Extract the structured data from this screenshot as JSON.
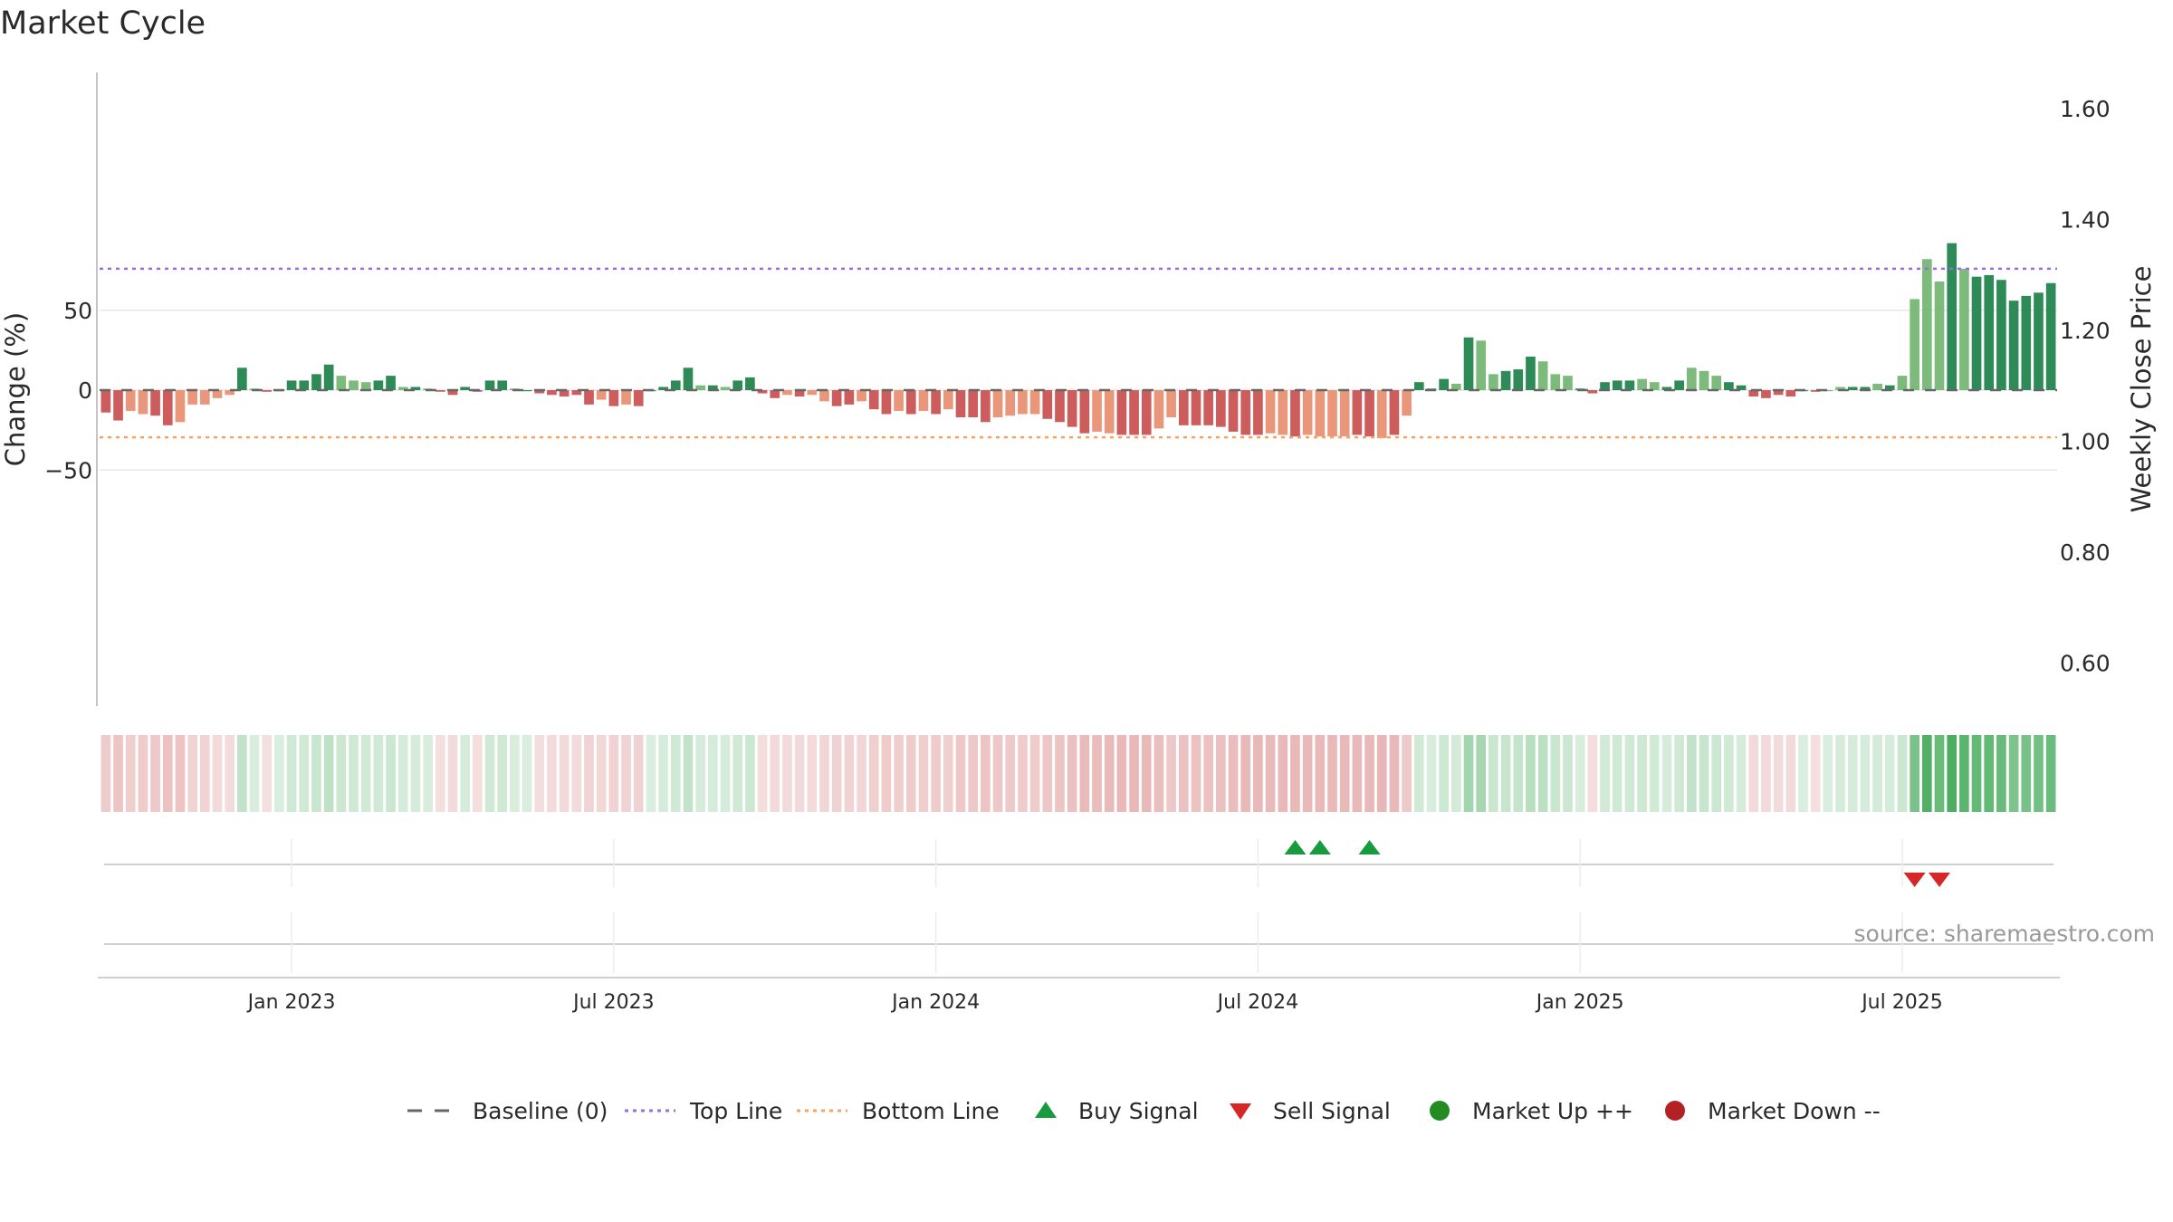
{
  "title": "Market Cycle",
  "source_text": "source: sharemaestro.com",
  "colors": {
    "dark_green": "#2e8b57",
    "light_green": "#7dbb7d",
    "dark_red": "#cd5c5c",
    "light_red": "#e9967a",
    "top_line": "#9370db",
    "bottom_line": "#f4a460",
    "buy": "#1a9a3e",
    "sell": "#d62728",
    "market_up": "#228b22",
    "market_down": "#b22222",
    "baseline": "#666666"
  },
  "legend": [
    {
      "label": "Baseline (0)",
      "symbol": "dash",
      "color": "#666666"
    },
    {
      "label": "Top Line",
      "symbol": "dot-purple",
      "color": "#9370db"
    },
    {
      "label": "Bottom Line",
      "symbol": "dot-orange",
      "color": "#f4a460"
    },
    {
      "label": "Buy Signal",
      "symbol": "triangle-up",
      "color": "#1a9a3e"
    },
    {
      "label": "Sell Signal",
      "symbol": "triangle-down",
      "color": "#d62728"
    },
    {
      "label": "Market Up ++",
      "symbol": "circle",
      "color": "#228b22"
    },
    {
      "label": "Market Down --",
      "symbol": "circle",
      "color": "#b22222"
    }
  ],
  "chart_data": {
    "type": "bar",
    "title": "Market Cycle",
    "ylabel": "Change (%)",
    "y2label": "Weekly Close Price",
    "ylim": [
      -99,
      99
    ],
    "y_ticks": [
      -50,
      0,
      50
    ],
    "y_tick_labels": [
      "−50",
      "0",
      "50"
    ],
    "y2_ticks": [
      0.6,
      0.8,
      1.0,
      1.2,
      1.4,
      1.6
    ],
    "y2_tick_labels": [
      "0.60",
      "0.80",
      "1.00",
      "1.20",
      "1.40",
      "1.60"
    ],
    "top_line": 76,
    "bottom_line": -29.5,
    "x_tick_labels": [
      "Jan 2023",
      "Jul 2023",
      "Jan 2024",
      "Jul 2024",
      "Jan 2025",
      "Jul 2025"
    ],
    "x_tick_indices": [
      15,
      41,
      67,
      93,
      119,
      145
    ],
    "values": [
      -14,
      -19,
      -13,
      -15,
      -16,
      -22,
      -20,
      -9,
      -9,
      -5,
      -3,
      14,
      1,
      -1,
      0,
      6,
      6,
      10,
      16,
      9,
      6,
      5,
      6,
      9,
      2,
      2,
      1,
      -1,
      -3,
      2,
      -1,
      6,
      6,
      1,
      0,
      -2,
      -3,
      -4,
      -3,
      -9,
      -6,
      -10,
      -9,
      -10,
      0,
      2,
      6,
      14,
      3,
      3,
      2,
      6,
      8,
      -2,
      -5,
      -3,
      -4,
      -3,
      -7,
      -10,
      -9,
      -7,
      -12,
      -15,
      -13,
      -15,
      -13,
      -15,
      -12,
      -17,
      -17,
      -20,
      -17,
      -16,
      -15,
      -15,
      -18,
      -20,
      -23,
      -27,
      -26,
      -27,
      -28,
      -28,
      -28,
      -24,
      -17,
      -22,
      -22,
      -22,
      -23,
      -26,
      -28,
      -28,
      -27,
      -28,
      -29,
      -28,
      -29,
      -29,
      -29,
      -28,
      -29,
      -30,
      -28,
      -16,
      5,
      1,
      7,
      4,
      33,
      31,
      10,
      12,
      13,
      21,
      18,
      10,
      9,
      1,
      -2,
      5,
      6,
      6,
      7,
      5,
      2,
      6,
      14,
      12,
      9,
      5,
      3,
      -4,
      -5,
      -3,
      -4,
      0,
      -1,
      0,
      2,
      2,
      2,
      4,
      3,
      9,
      57,
      82,
      68,
      92,
      76,
      71,
      72,
      69,
      56,
      59,
      61,
      67
    ],
    "shades": [
      0,
      0,
      1,
      1,
      0,
      0,
      1,
      1,
      1,
      1,
      1,
      0,
      1,
      0,
      0,
      0,
      0,
      0,
      0,
      1,
      1,
      1,
      0,
      0,
      1,
      0,
      1,
      0,
      0,
      0,
      0,
      0,
      0,
      1,
      0,
      0,
      0,
      0,
      0,
      0,
      1,
      0,
      1,
      0,
      0,
      0,
      0,
      0,
      1,
      0,
      1,
      0,
      0,
      0,
      0,
      1,
      0,
      1,
      1,
      0,
      0,
      1,
      0,
      0,
      1,
      0,
      1,
      0,
      1,
      0,
      0,
      0,
      1,
      1,
      1,
      1,
      0,
      0,
      0,
      0,
      1,
      1,
      0,
      0,
      0,
      1,
      1,
      0,
      0,
      0,
      0,
      0,
      0,
      0,
      1,
      1,
      0,
      1,
      1,
      1,
      1,
      0,
      0,
      1,
      0,
      1,
      0,
      0,
      0,
      1,
      0,
      1,
      1,
      0,
      0,
      0,
      1,
      1,
      1,
      0,
      0,
      0,
      0,
      0,
      1,
      1,
      0,
      0,
      1,
      1,
      1,
      0,
      0,
      0,
      0,
      0,
      0,
      0,
      0,
      1,
      1,
      0,
      0,
      1,
      0,
      1,
      1,
      1,
      1,
      0,
      1,
      0,
      0,
      0,
      0,
      0
    ],
    "buy_signal_indices": [
      96,
      98,
      102
    ],
    "sell_signal_indices": [
      146,
      148
    ]
  }
}
